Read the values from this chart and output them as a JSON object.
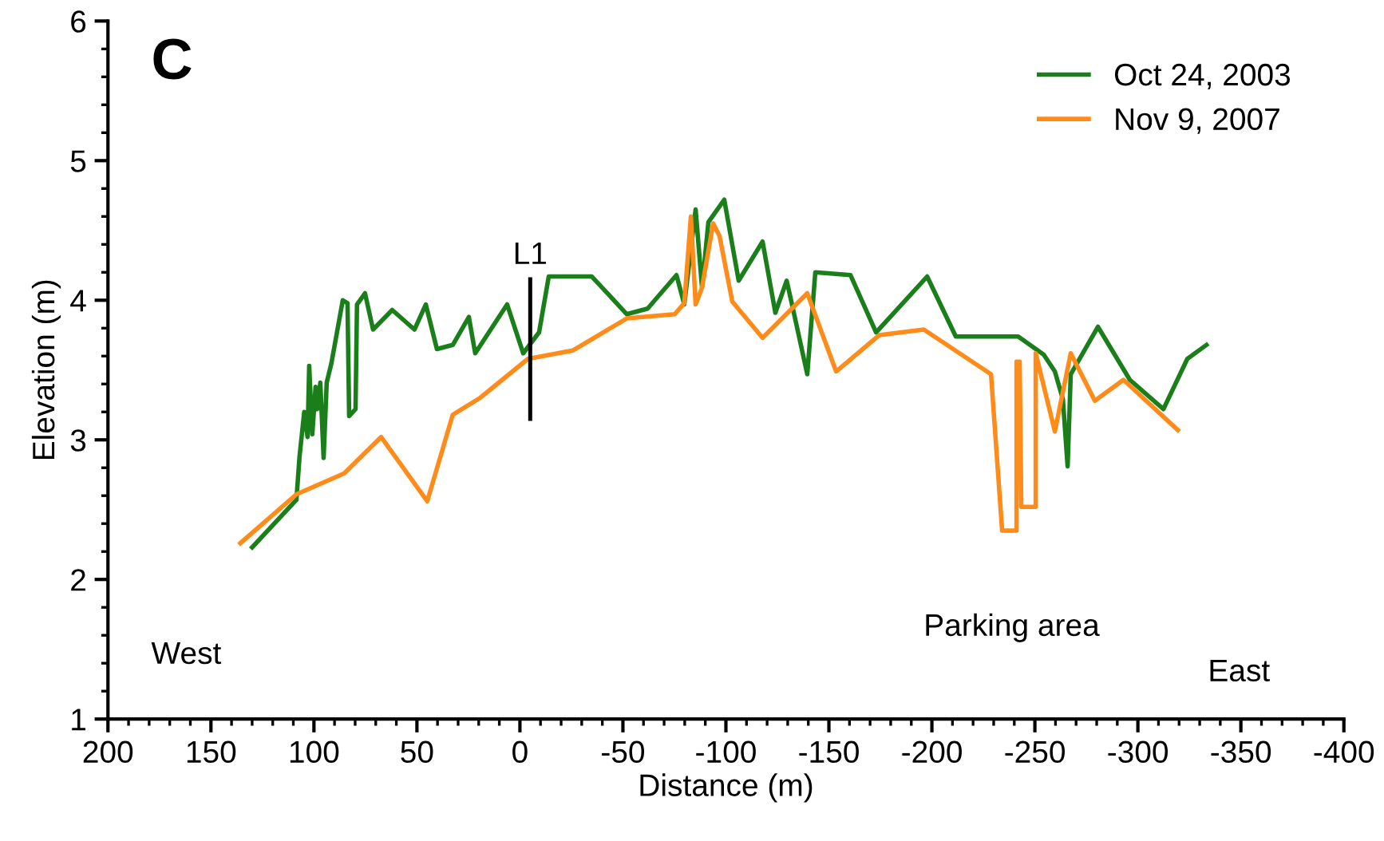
{
  "chart_data": {
    "type": "line",
    "xlabel": "Distance (m)",
    "ylabel": "Elevation (m)",
    "xlim": [
      200,
      -400
    ],
    "xticks": [
      200,
      150,
      100,
      50,
      0,
      -50,
      -100,
      -150,
      -200,
      -250,
      -300,
      -350,
      -400
    ],
    "ylim": [
      1,
      6
    ],
    "yticks": [
      1,
      2,
      3,
      4,
      5,
      6
    ],
    "grid": false,
    "legend": "top right",
    "marker": "none",
    "line_style": "solid",
    "annotations": [
      "C",
      "West",
      "East",
      "Parking area",
      {
        "text": "L1",
        "x": -5,
        "y": 4.15
      }
    ],
    "series": [
      {
        "name": "Oct 24, 2003",
        "color": "#1a7f1a",
        "x": [
          130,
          108.5,
          107,
          104.7,
          103.1,
          102.3,
          100.8,
          99.2,
          98.4,
          96.9,
          95.3,
          93.8,
          91.5,
          86,
          83.7,
          82.9,
          79.8,
          79.1,
          75.2,
          71.3,
          62,
          51.2,
          45.7,
          40.3,
          32.6,
          24.8,
          21.7,
          6.2,
          -1.6,
          -9.3,
          -14,
          -25.6,
          -34.9,
          -51.9,
          -62,
          -76,
          -79.8,
          -85.3,
          -88.4,
          -91.5,
          -99.2,
          -106.2,
          -117.8,
          -124,
          -129.5,
          -131.8,
          -139.5,
          -143.4,
          -160.5,
          -172.9,
          -197.7,
          -211.6,
          -241.9,
          -254.3,
          -259.7,
          -263.6,
          -265.9,
          -267.4,
          -280.6,
          -296.1,
          -312.4,
          -324,
          -333.3
        ],
        "values": [
          2.23,
          2.57,
          2.88,
          3.2,
          3.02,
          3.53,
          3.04,
          3.38,
          3.22,
          3.41,
          2.87,
          3.41,
          3.55,
          4.0,
          3.98,
          3.17,
          3.22,
          3.97,
          4.05,
          3.79,
          3.93,
          3.79,
          3.97,
          3.65,
          3.68,
          3.88,
          3.62,
          3.97,
          3.62,
          3.77,
          4.17,
          4.17,
          4.17,
          3.9,
          3.94,
          4.18,
          3.97,
          4.65,
          4.09,
          4.56,
          4.72,
          4.14,
          4.42,
          3.91,
          4.14,
          3.99,
          3.47,
          4.2,
          4.18,
          3.77,
          4.17,
          3.74,
          3.74,
          3.61,
          3.49,
          3.29,
          2.81,
          3.47,
          3.81,
          3.43,
          3.22,
          3.58,
          3.68
        ]
      },
      {
        "name": "Nov 9, 2007",
        "color": "#ff8c1a",
        "x": [
          135.7,
          108.5,
          85.3,
          67.4,
          45,
          32.6,
          19.4,
          -3.9,
          -25.6,
          -51.9,
          -75.2,
          -79.8,
          -83,
          -85.3,
          -88.4,
          -93.8,
          -96.9,
          -103.1,
          -117.8,
          -139.5,
          -153.5,
          -174.4,
          -196.1,
          -228.7,
          -234.1,
          -241.1,
          -241.1,
          -242.6,
          -243.4,
          -250.4,
          -250.4,
          -259.7,
          -267.4,
          -279.1,
          -293,
          -319.4
        ],
        "values": [
          2.26,
          2.61,
          2.76,
          3.02,
          2.56,
          3.18,
          3.3,
          3.58,
          3.64,
          3.87,
          3.9,
          3.98,
          4.6,
          3.97,
          4.09,
          4.55,
          4.46,
          3.99,
          3.73,
          4.05,
          3.49,
          3.75,
          3.79,
          3.47,
          2.35,
          2.35,
          3.56,
          3.56,
          2.52,
          2.52,
          3.62,
          3.06,
          3.62,
          3.28,
          3.43,
          3.07
        ]
      },
      {
        "color": "#000000",
        "x": [
          -5,
          -5
        ],
        "values": [
          3.15,
          4.15
        ]
      }
    ]
  }
}
